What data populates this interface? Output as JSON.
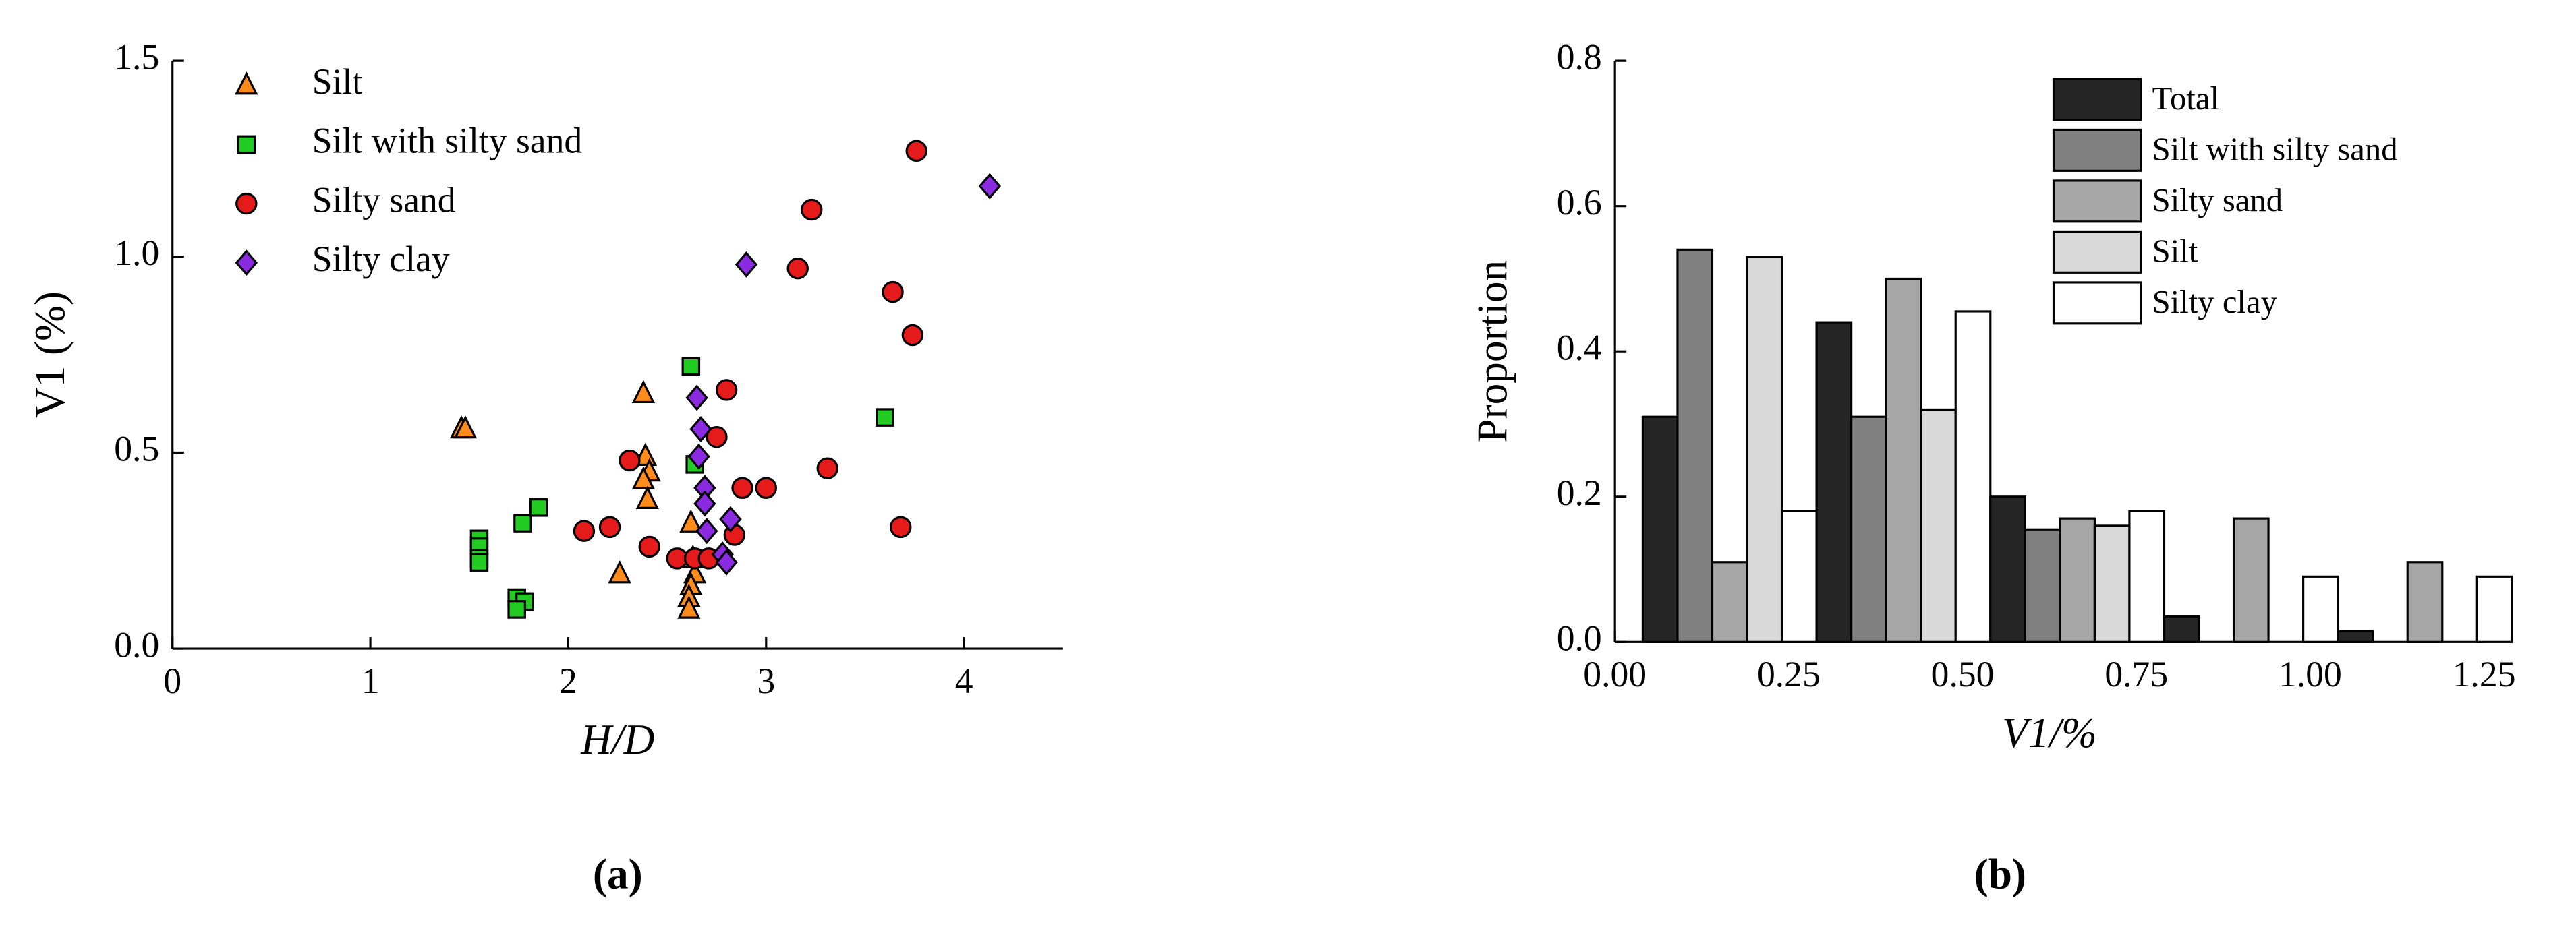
{
  "chart_data": [
    {
      "type": "scatter",
      "caption": "(a)",
      "x_label": "H/D",
      "y_label": "V1 (%)",
      "xlim": [
        0,
        4.5
      ],
      "xticks": [
        0,
        1,
        2,
        3,
        4
      ],
      "ylim": [
        0,
        1.5
      ],
      "yticks": [
        {
          "value": 0,
          "label": "0.0"
        },
        {
          "value": 0.5,
          "label": "0.5"
        },
        {
          "value": 1,
          "label": "1.0"
        },
        1.5
      ],
      "legend": "upper-left",
      "series": [
        {
          "name": "Silt",
          "color": "#ff8c1a",
          "marker": "triangle",
          "x": [
            1.46,
            1.48,
            2.38,
            2.39,
            2.41,
            2.38,
            2.4,
            2.26,
            2.62,
            2.63,
            2.64,
            2.62,
            2.61,
            2.61
          ],
          "y": [
            0.56,
            0.56,
            0.65,
            0.49,
            0.45,
            0.43,
            0.38,
            0.19,
            0.32,
            0.23,
            0.19,
            0.16,
            0.13,
            0.1
          ]
        },
        {
          "name": "Silt with silty sand",
          "color": "#22cc22",
          "marker": "square",
          "x": [
            1.55,
            1.55,
            1.55,
            1.55,
            1.77,
            1.85,
            1.74,
            1.78,
            1.74,
            2.62,
            2.64,
            3.6
          ],
          "y": [
            0.28,
            0.26,
            0.23,
            0.22,
            0.32,
            0.36,
            0.13,
            0.12,
            0.1,
            0.72,
            0.47,
            0.59
          ]
        },
        {
          "name": "Silty sand",
          "color": "#e51a1a",
          "marker": "circle",
          "x": [
            2.08,
            2.21,
            2.31,
            2.41,
            2.55,
            2.64,
            2.71,
            2.75,
            2.8,
            2.84,
            2.88,
            3.0,
            3.16,
            3.23,
            3.31,
            3.64,
            3.74,
            3.68,
            3.76
          ],
          "y": [
            0.3,
            0.31,
            0.48,
            0.26,
            0.23,
            0.23,
            0.23,
            0.54,
            0.66,
            0.29,
            0.41,
            0.41,
            0.97,
            1.12,
            0.46,
            0.91,
            0.8,
            0.31,
            1.27
          ]
        },
        {
          "name": "Silty clay",
          "color": "#8a2be2",
          "marker": "diamond",
          "x": [
            2.65,
            2.67,
            2.66,
            2.69,
            2.69,
            2.7,
            2.82,
            2.78,
            2.8,
            2.9,
            4.13
          ],
          "y": [
            0.64,
            0.56,
            0.49,
            0.41,
            0.37,
            0.3,
            0.33,
            0.24,
            0.22,
            0.98,
            1.18
          ]
        }
      ]
    },
    {
      "type": "histogram",
      "caption": "(b)",
      "x_label": "V1/%",
      "y_label": "Proportion",
      "bins": [
        0,
        0.25,
        0.5,
        0.75,
        1,
        1.25
      ],
      "xlim": [
        0,
        1.25
      ],
      "xticks": [
        {
          "value": 0,
          "label": "0.00"
        },
        0.25,
        {
          "value": 0.5,
          "label": "0.50"
        },
        0.75,
        {
          "value": 1,
          "label": "1.00"
        },
        1.25
      ],
      "ylim": [
        0,
        0.8
      ],
      "yticks": [
        {
          "value": 0,
          "label": "0.0"
        },
        0.2,
        0.4,
        0.6,
        0.8
      ],
      "legend": "upper-right",
      "series": [
        {
          "name": "Total",
          "color": "#262626",
          "values": [
            0.31,
            0.44,
            0.2,
            0.035,
            0.015
          ]
        },
        {
          "name": "Silt with silty sand",
          "color": "#808080",
          "values": [
            0.54,
            0.31,
            0.155,
            0,
            0
          ]
        },
        {
          "name": "Silty sand",
          "color": "#a6a6a6",
          "values": [
            0.11,
            0.5,
            0.17,
            0.17,
            0.11
          ]
        },
        {
          "name": "Silt",
          "color": "#d9d9d9",
          "values": [
            0.53,
            0.32,
            0.16,
            0,
            0
          ]
        },
        {
          "name": "Silty clay",
          "color": "#ffffff",
          "values": [
            0.18,
            0.455,
            0.18,
            0.09,
            0.09
          ]
        }
      ]
    }
  ]
}
